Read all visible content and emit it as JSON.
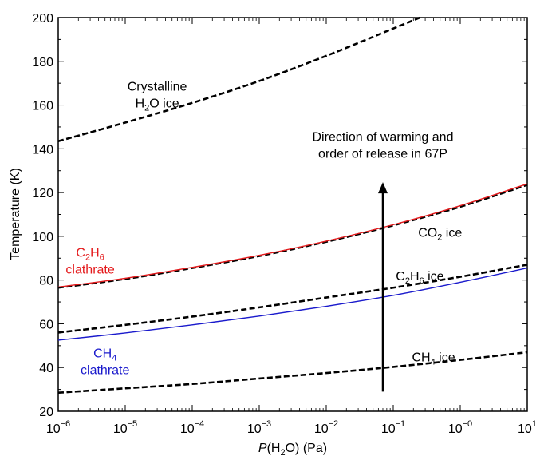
{
  "chart_data": {
    "type": "line",
    "xlabel": {
      "main": "P",
      "open": "(H",
      "sub": "2",
      "close": "O) (Pa)"
    },
    "ylabel": "Temperature (K)",
    "xscale": "log",
    "xlim": [
      1e-06,
      10
    ],
    "ylim": [
      20,
      200
    ],
    "x_ticks": [
      {
        "base": "10",
        "exp": "−6",
        "value": 1e-06
      },
      {
        "base": "10",
        "exp": "−5",
        "value": 1e-05
      },
      {
        "base": "10",
        "exp": "−4",
        "value": 0.0001
      },
      {
        "base": "10",
        "exp": "−3",
        "value": 0.001
      },
      {
        "base": "10",
        "exp": "−2",
        "value": 0.01
      },
      {
        "base": "10",
        "exp": "−1",
        "value": 0.1
      },
      {
        "base": "10",
        "exp": "−0",
        "value": 1
      },
      {
        "base": "10",
        "exp": "1",
        "value": 10
      }
    ],
    "y_ticks": [
      "20",
      "40",
      "60",
      "80",
      "100",
      "120",
      "140",
      "160",
      "180",
      "200"
    ],
    "grid": false,
    "series": [
      {
        "id": "h2o-ice",
        "style": "dashed",
        "color": "#000000",
        "x": [
          1e-06,
          1e-05,
          0.0001,
          0.001,
          0.01,
          0.1,
          0.25
        ],
        "y": [
          143.5,
          152,
          161,
          171,
          182.5,
          195,
          200
        ]
      },
      {
        "id": "co2-ice",
        "style": "dashed",
        "color": "#000000",
        "x": [
          1e-06,
          1e-05,
          0.0001,
          0.001,
          0.01,
          0.1,
          1,
          10
        ],
        "y": [
          76.5,
          80.5,
          85.5,
          91,
          97.5,
          105,
          113.5,
          123.5
        ]
      },
      {
        "id": "c2h6-clathrate",
        "style": "solid",
        "color": "#e41a1c",
        "x": [
          1e-06,
          1e-05,
          0.0001,
          0.001,
          0.01,
          0.1,
          1,
          10
        ],
        "y": [
          76.8,
          80.8,
          85.8,
          91.3,
          97.8,
          105.3,
          114,
          124
        ]
      },
      {
        "id": "c2h6-ice",
        "style": "dashed",
        "color": "#000000",
        "x": [
          1e-06,
          1e-05,
          0.0001,
          0.001,
          0.01,
          0.1,
          1,
          10
        ],
        "y": [
          56,
          59.5,
          63.3,
          67.5,
          72,
          76.5,
          81.5,
          87
        ]
      },
      {
        "id": "ch4-clathrate",
        "style": "solid",
        "color": "#1a1acc",
        "x": [
          1e-06,
          1e-05,
          0.0001,
          0.001,
          0.01,
          0.1,
          1,
          10
        ],
        "y": [
          52.5,
          55.8,
          59.5,
          63.5,
          68,
          73,
          79,
          85.5
        ]
      },
      {
        "id": "ch4-ice",
        "style": "dashed",
        "color": "#000000",
        "x": [
          1e-06,
          1e-05,
          0.0001,
          0.001,
          0.01,
          0.1,
          1,
          10
        ],
        "y": [
          28.5,
          30.5,
          32.5,
          35,
          37.5,
          40.3,
          43.5,
          47
        ]
      }
    ],
    "annotations": [
      {
        "id": "label-h2o-ice",
        "lines": [
          {
            "text": "Crystalline"
          },
          {
            "pre": "H",
            "sub": "2",
            "post": "O ice"
          }
        ],
        "x": 3e-05,
        "y": 165,
        "color": "#000000"
      },
      {
        "id": "label-c2h6-clathrate",
        "lines": [
          {
            "pre": "C",
            "sub": "2",
            "mid": "H",
            "sub2": "6"
          },
          {
            "text": "clathrate"
          }
        ],
        "x": 3e-06,
        "y": 89,
        "color": "#e41a1c"
      },
      {
        "id": "label-co2-ice",
        "lines": [
          {
            "pre": "CO",
            "sub": "2",
            "post": " ice"
          }
        ],
        "x": 0.5,
        "y": 102,
        "color": "#000000"
      },
      {
        "id": "label-c2h6-ice",
        "lines": [
          {
            "pre": "C",
            "sub": "2",
            "mid": "H",
            "sub2": "6",
            "post": " ice"
          }
        ],
        "x": 0.25,
        "y": 82,
        "color": "#000000"
      },
      {
        "id": "label-ch4-clathrate",
        "lines": [
          {
            "pre": "CH",
            "sub": "4"
          },
          {
            "text": "clathrate"
          }
        ],
        "x": 5e-06,
        "y": 43,
        "color": "#1a1acc"
      },
      {
        "id": "label-ch4-ice",
        "lines": [
          {
            "pre": "CH",
            "sub": "4",
            "post": " ice"
          }
        ],
        "x": 0.4,
        "y": 45,
        "color": "#000000"
      },
      {
        "id": "label-warming",
        "lines": [
          {
            "text": "Direction of warming and"
          },
          {
            "text": "order of release in 67P"
          }
        ],
        "x": 0.07,
        "y": 142,
        "color": "#000000"
      }
    ],
    "arrow": {
      "x": 0.07,
      "y_from": 29,
      "y_to": 124,
      "color": "#000000"
    }
  }
}
